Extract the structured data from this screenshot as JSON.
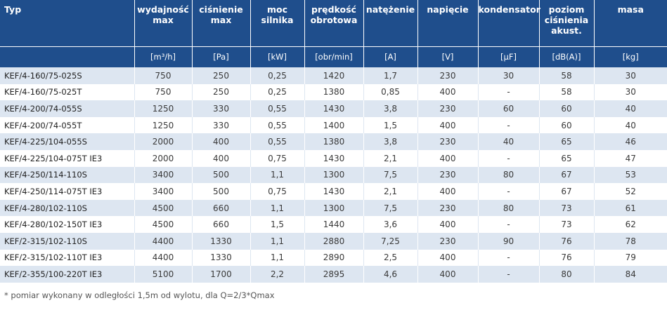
{
  "headers": [
    "Typ",
    "wydajność max",
    "ciśnienie max",
    "moc silnika",
    "prędkość obrotowa",
    "natężenie",
    "napięcie",
    "kondensator",
    "poziom ciśnienia akust.",
    "masa"
  ],
  "units": [
    "",
    "[m³/h]",
    "[Pa]",
    "[kW]",
    "[obr/min]",
    "[A]",
    "[V]",
    "[μF]",
    "[dB(A)]",
    "[kg]"
  ],
  "rows": [
    [
      "KEF/4-160/75-025S",
      "750",
      "250",
      "0,25",
      "1420",
      "1,7",
      "230",
      "30",
      "58",
      "30"
    ],
    [
      "KEF/4-160/75-025T",
      "750",
      "250",
      "0,25",
      "1380",
      "0,85",
      "400",
      "-",
      "58",
      "30"
    ],
    [
      "KEF/4-200/74-055S",
      "1250",
      "330",
      "0,55",
      "1430",
      "3,8",
      "230",
      "60",
      "60",
      "40"
    ],
    [
      "KEF/4-200/74-055T",
      "1250",
      "330",
      "0,55",
      "1400",
      "1,5",
      "400",
      "-",
      "60",
      "40"
    ],
    [
      "KEF/4-225/104-055S",
      "2000",
      "400",
      "0,55",
      "1380",
      "3,8",
      "230",
      "40",
      "65",
      "46"
    ],
    [
      "KEF/4-225/104-075T IE3",
      "2000",
      "400",
      "0,75",
      "1430",
      "2,1",
      "400",
      "-",
      "65",
      "47"
    ],
    [
      "KEF/4-250/114-110S",
      "3400",
      "500",
      "1,1",
      "1300",
      "7,5",
      "230",
      "80",
      "67",
      "53"
    ],
    [
      "KEF/4-250/114-075T IE3",
      "3400",
      "500",
      "0,75",
      "1430",
      "2,1",
      "400",
      "-",
      "67",
      "52"
    ],
    [
      "KEF/4-280/102-110S",
      "4500",
      "660",
      "1,1",
      "1300",
      "7,5",
      "230",
      "80",
      "73",
      "61"
    ],
    [
      "KEF/4-280/102-150T IE3",
      "4500",
      "660",
      "1,5",
      "1440",
      "3,6",
      "400",
      "-",
      "73",
      "62"
    ],
    [
      "KEF/2-315/102-110S",
      "4400",
      "1330",
      "1,1",
      "2880",
      "7,25",
      "230",
      "90",
      "76",
      "78"
    ],
    [
      "KEF/2-315/102-110T IE3",
      "4400",
      "1330",
      "1,1",
      "2890",
      "2,5",
      "400",
      "-",
      "76",
      "79"
    ],
    [
      "KEF/2-355/100-220T IE3",
      "5100",
      "1700",
      "2,2",
      "2895",
      "4,6",
      "400",
      "-",
      "80",
      "84"
    ]
  ],
  "footnote": "* pomiar wykonany w odległości 1,5m od wylotu, dla Q=2/3*Qmax",
  "colors": {
    "header_bg": "#1f4e8c",
    "stripe": "#dde6f1"
  }
}
